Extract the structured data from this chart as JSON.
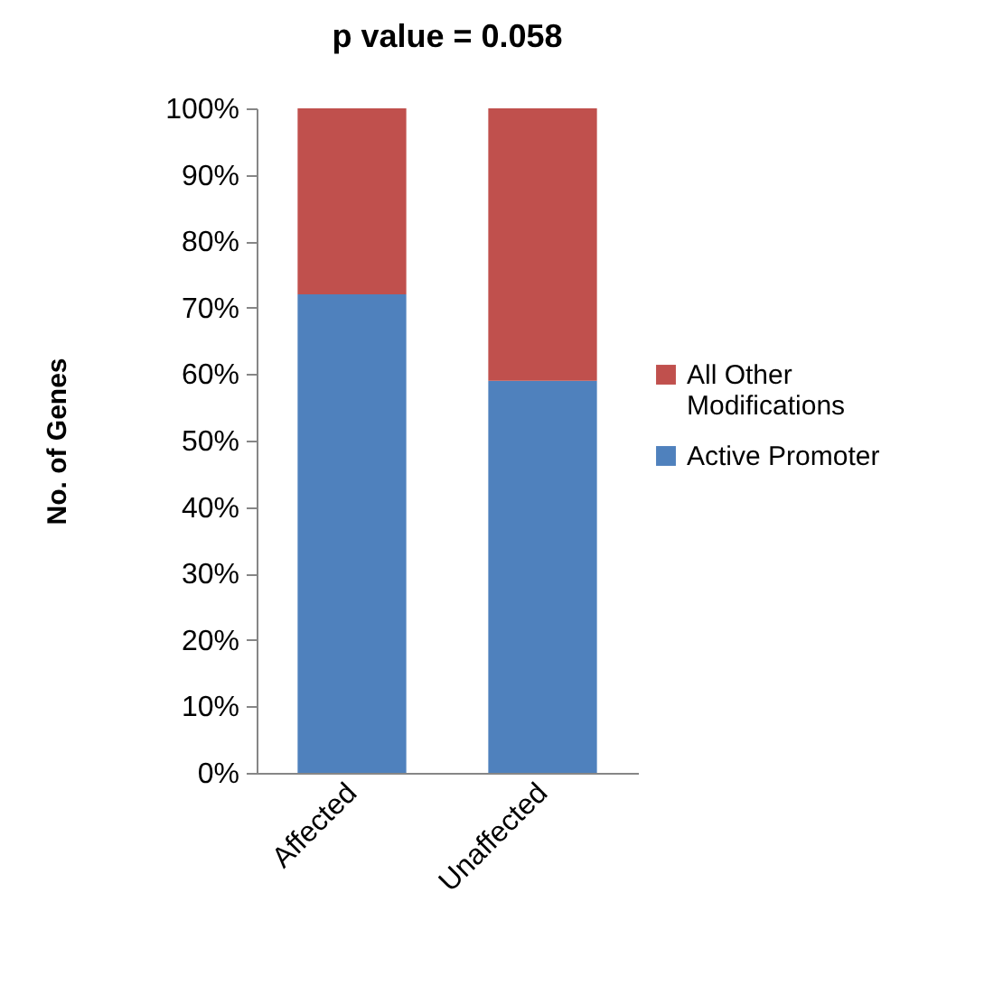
{
  "chart_data": {
    "type": "bar",
    "title": "p value = 0.058",
    "ylabel": "No. of Genes",
    "categories": [
      "Affected",
      "Unaffected"
    ],
    "stacked": true,
    "series": [
      {
        "name": "Active Promoter",
        "color": "#4f81bd",
        "values": [
          72,
          59
        ]
      },
      {
        "name": "All Other Modifications",
        "color": "#c0504d",
        "values": [
          28,
          41
        ]
      }
    ],
    "ylim": [
      0,
      100
    ],
    "yticks": [
      {
        "value": 0,
        "label": "0%"
      },
      {
        "value": 10,
        "label": "10%"
      },
      {
        "value": 20,
        "label": "20%"
      },
      {
        "value": 30,
        "label": "30%"
      },
      {
        "value": 40,
        "label": "40%"
      },
      {
        "value": 50,
        "label": "50%"
      },
      {
        "value": 60,
        "label": "60%"
      },
      {
        "value": 70,
        "label": "70%"
      },
      {
        "value": 80,
        "label": "80%"
      },
      {
        "value": 90,
        "label": "90%"
      },
      {
        "value": 100,
        "label": "100%"
      }
    ],
    "grid": false,
    "legend": "right"
  }
}
